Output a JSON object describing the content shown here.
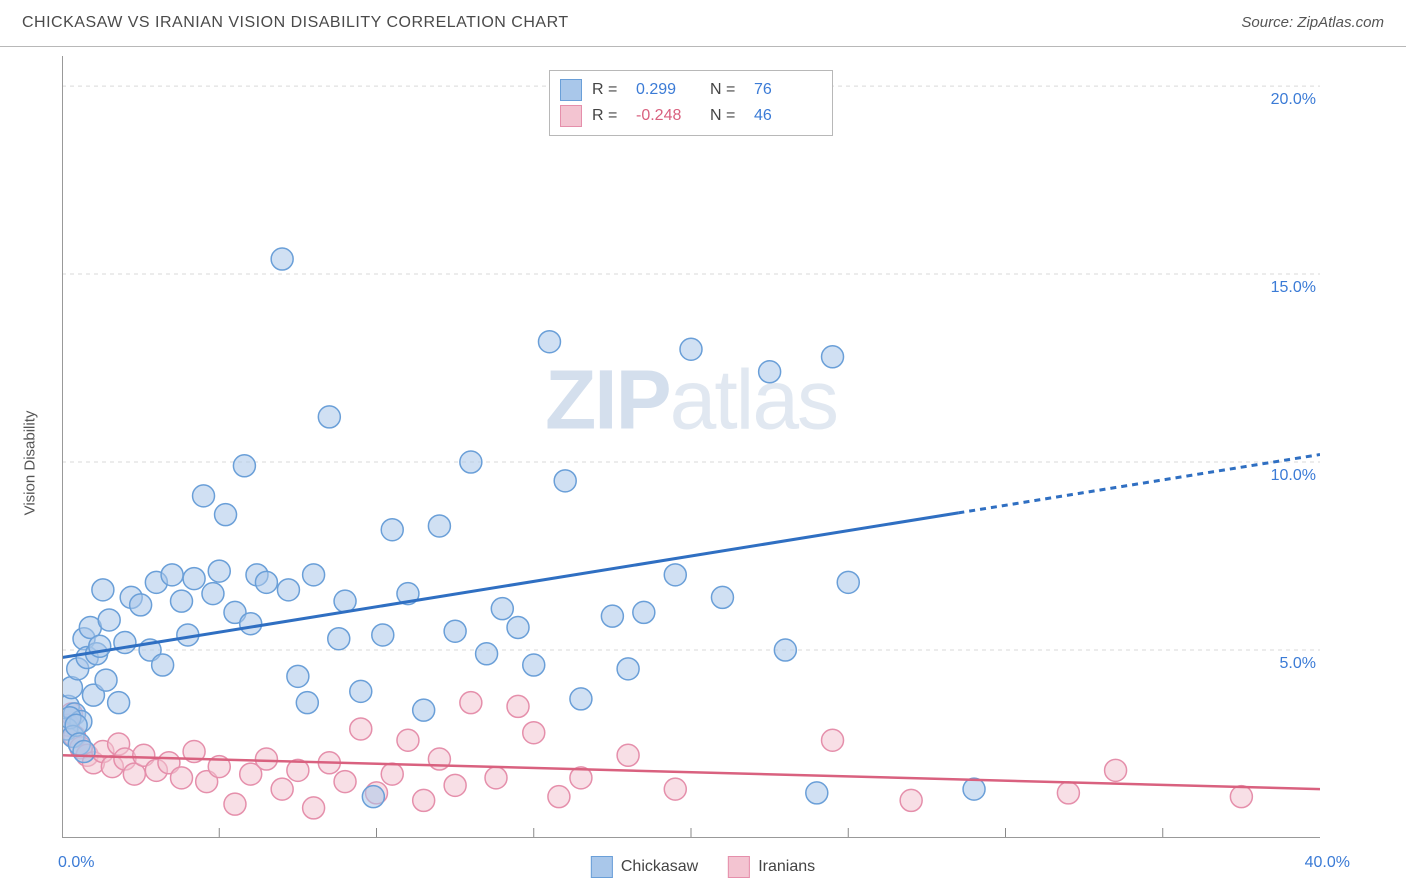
{
  "title": "CHICKASAW VS IRANIAN VISION DISABILITY CORRELATION CHART",
  "source_label": "Source: ",
  "source_name": "ZipAtlas.com",
  "ylabel": "Vision Disability",
  "watermark": {
    "bold": "ZIP",
    "rest": "atlas"
  },
  "chart": {
    "type": "scatter",
    "xlim": [
      0,
      40
    ],
    "ylim": [
      0,
      20.8
    ],
    "xtick_step": 5,
    "ytick_step": 5,
    "background_color": "#ffffff",
    "grid_color": "#d9d9d9",
    "grid_dash": "4,4",
    "axis_color": "#999999",
    "marker_radius": 11,
    "marker_opacity": 0.55,
    "x_origin_label": "0.0%",
    "x_max_label": "40.0%",
    "y_labels": [
      "5.0%",
      "10.0%",
      "15.0%",
      "20.0%"
    ],
    "series": [
      {
        "name": "Chickasaw",
        "fill": "#a9c7ea",
        "stroke": "#6a9fd8",
        "trend_color": "#2f6fc2",
        "trend_width": 3,
        "trend_solid_end_x": 28.5,
        "trend": {
          "x1": 0,
          "y1": 4.8,
          "x2": 40,
          "y2": 10.2
        },
        "R": "0.299",
        "N": "76",
        "r_color": "#3b7bd6",
        "points": [
          [
            0.2,
            3.5
          ],
          [
            0.3,
            4.0
          ],
          [
            0.4,
            3.3
          ],
          [
            0.5,
            4.5
          ],
          [
            0.6,
            3.1
          ],
          [
            0.7,
            5.3
          ],
          [
            0.8,
            4.8
          ],
          [
            0.9,
            5.6
          ],
          [
            1.0,
            3.8
          ],
          [
            1.1,
            4.9
          ],
          [
            1.2,
            5.1
          ],
          [
            1.3,
            6.6
          ],
          [
            1.4,
            4.2
          ],
          [
            1.5,
            5.8
          ],
          [
            1.8,
            3.6
          ],
          [
            2.0,
            5.2
          ],
          [
            2.2,
            6.4
          ],
          [
            2.5,
            6.2
          ],
          [
            2.8,
            5.0
          ],
          [
            3.0,
            6.8
          ],
          [
            3.2,
            4.6
          ],
          [
            3.5,
            7.0
          ],
          [
            3.8,
            6.3
          ],
          [
            4.0,
            5.4
          ],
          [
            4.2,
            6.9
          ],
          [
            4.5,
            9.1
          ],
          [
            4.8,
            6.5
          ],
          [
            5.0,
            7.1
          ],
          [
            5.2,
            8.6
          ],
          [
            5.5,
            6.0
          ],
          [
            5.8,
            9.9
          ],
          [
            6.0,
            5.7
          ],
          [
            6.2,
            7.0
          ],
          [
            6.5,
            6.8
          ],
          [
            7.0,
            15.4
          ],
          [
            7.2,
            6.6
          ],
          [
            7.5,
            4.3
          ],
          [
            7.8,
            3.6
          ],
          [
            8.0,
            7.0
          ],
          [
            8.5,
            11.2
          ],
          [
            8.8,
            5.3
          ],
          [
            9.0,
            6.3
          ],
          [
            9.5,
            3.9
          ],
          [
            9.9,
            1.1
          ],
          [
            10.2,
            5.4
          ],
          [
            10.5,
            8.2
          ],
          [
            11.0,
            6.5
          ],
          [
            11.5,
            3.4
          ],
          [
            12.0,
            8.3
          ],
          [
            12.5,
            5.5
          ],
          [
            13.0,
            10.0
          ],
          [
            13.5,
            4.9
          ],
          [
            14.0,
            6.1
          ],
          [
            14.5,
            5.6
          ],
          [
            15.0,
            4.6
          ],
          [
            15.5,
            13.2
          ],
          [
            16.0,
            9.5
          ],
          [
            16.5,
            3.7
          ],
          [
            17.5,
            5.9
          ],
          [
            18.0,
            4.5
          ],
          [
            18.5,
            6.0
          ],
          [
            19.5,
            7.0
          ],
          [
            20.0,
            13.0
          ],
          [
            21.0,
            6.4
          ],
          [
            22.5,
            12.4
          ],
          [
            23.0,
            5.0
          ],
          [
            24.0,
            1.2
          ],
          [
            24.5,
            12.8
          ],
          [
            25.0,
            6.8
          ],
          [
            29.0,
            1.3
          ],
          [
            0.15,
            2.9
          ],
          [
            0.25,
            3.2
          ],
          [
            0.35,
            2.7
          ],
          [
            0.45,
            3.0
          ],
          [
            0.55,
            2.5
          ],
          [
            0.7,
            2.3
          ]
        ]
      },
      {
        "name": "Iranians",
        "fill": "#f3c4d1",
        "stroke": "#e58fab",
        "trend_color": "#d9617f",
        "trend_width": 2.5,
        "trend_solid_end_x": 40,
        "trend": {
          "x1": 0,
          "y1": 2.2,
          "x2": 40,
          "y2": 1.3
        },
        "R": "-0.248",
        "N": "46",
        "r_color": "#d9617f",
        "points": [
          [
            0.2,
            3.0
          ],
          [
            0.4,
            2.7
          ],
          [
            0.6,
            2.4
          ],
          [
            0.8,
            2.2
          ],
          [
            1.0,
            2.0
          ],
          [
            1.3,
            2.3
          ],
          [
            1.6,
            1.9
          ],
          [
            1.8,
            2.5
          ],
          [
            2.0,
            2.1
          ],
          [
            2.3,
            1.7
          ],
          [
            2.6,
            2.2
          ],
          [
            3.0,
            1.8
          ],
          [
            3.4,
            2.0
          ],
          [
            3.8,
            1.6
          ],
          [
            4.2,
            2.3
          ],
          [
            4.6,
            1.5
          ],
          [
            5.0,
            1.9
          ],
          [
            5.5,
            0.9
          ],
          [
            6.0,
            1.7
          ],
          [
            6.5,
            2.1
          ],
          [
            7.0,
            1.3
          ],
          [
            7.5,
            1.8
          ],
          [
            8.0,
            0.8
          ],
          [
            8.5,
            2.0
          ],
          [
            9.0,
            1.5
          ],
          [
            9.5,
            2.9
          ],
          [
            10.0,
            1.2
          ],
          [
            10.5,
            1.7
          ],
          [
            11.0,
            2.6
          ],
          [
            11.5,
            1.0
          ],
          [
            12.0,
            2.1
          ],
          [
            12.5,
            1.4
          ],
          [
            13.0,
            3.6
          ],
          [
            13.8,
            1.6
          ],
          [
            14.5,
            3.5
          ],
          [
            15.0,
            2.8
          ],
          [
            15.8,
            1.1
          ],
          [
            16.5,
            1.6
          ],
          [
            18.0,
            2.2
          ],
          [
            19.5,
            1.3
          ],
          [
            24.5,
            2.6
          ],
          [
            27.0,
            1.0
          ],
          [
            32.0,
            1.2
          ],
          [
            33.5,
            1.8
          ],
          [
            37.5,
            1.1
          ],
          [
            0.3,
            3.3
          ]
        ]
      }
    ]
  },
  "legend_labels": {
    "R": "R =",
    "N": "N ="
  }
}
